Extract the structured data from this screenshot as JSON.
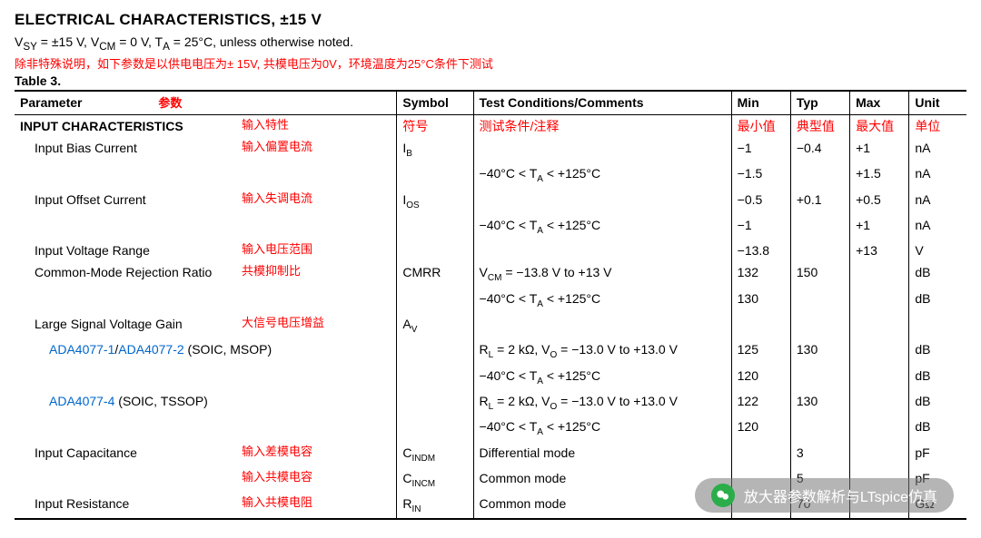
{
  "doc": {
    "title": "ELECTRICAL CHARACTERISTICS, ±15 V",
    "conditions_html": "V<sub>SY</sub> = ±15 V, V<sub>CM</sub> = 0 V, T<sub>A</sub> = 25°C, unless otherwise noted.",
    "red_note": "除非特殊说明，如下参数是以供电电压为± 15V, 共模电压为0V，环境温度为25°C条件下测试",
    "table_label": "Table 3."
  },
  "headers": {
    "parameter": "Parameter",
    "parameter_anno": "参数",
    "symbol": "Symbol",
    "cond": "Test Conditions/Comments",
    "min": "Min",
    "typ": "Typ",
    "max": "Max",
    "unit": "Unit"
  },
  "header_annos": {
    "symbol": "符号",
    "cond": "测试条件/注释",
    "min": "最小值",
    "typ": "典型值",
    "max": "最大值",
    "unit": "单位"
  },
  "rows": [
    {
      "param_html": "<span class='bold'>INPUT CHARACTERISTICS</span>",
      "anno": "输入特性",
      "symbol_red": "符号",
      "cond_red": "测试条件/注释",
      "min_red": "最小值",
      "typ_red": "典型值",
      "max_red": "最大值",
      "unit_red": "单位"
    },
    {
      "param_html": "<span class='indent1'>Input Bias Current</span>",
      "anno": "输入偏置电流",
      "symbol_html": "I<span class='sub'>B</span>",
      "cond_html": "",
      "min": "−1",
      "typ": "−0.4",
      "max": "+1",
      "unit": "nA"
    },
    {
      "param_html": "",
      "anno": "",
      "symbol_html": "",
      "cond_html": "−40°C < T<span class='sub'>A</span> < +125°C",
      "min": "−1.5",
      "typ": "",
      "max": "+1.5",
      "unit": "nA"
    },
    {
      "param_html": "<span class='indent1'>Input Offset Current</span>",
      "anno": "输入失调电流",
      "symbol_html": "I<span class='sub'>OS</span>",
      "cond_html": "",
      "min": "−0.5",
      "typ": "+0.1",
      "max": "+0.5",
      "unit": "nA"
    },
    {
      "param_html": "",
      "anno": "",
      "symbol_html": "",
      "cond_html": "−40°C < T<span class='sub'>A</span> < +125°C",
      "min": "−1",
      "typ": "",
      "max": "+1",
      "unit": "nA"
    },
    {
      "param_html": "<span class='indent1'>Input Voltage Range</span>",
      "anno": "输入电压范围",
      "symbol_html": "",
      "cond_html": "",
      "min": "−13.8",
      "typ": "",
      "max": "+13",
      "unit": "V"
    },
    {
      "param_html": "<span class='indent1'>Common-Mode Rejection Ratio</span>",
      "anno": "共模抑制比",
      "symbol_html": "CMRR",
      "cond_html": "V<span class='sub'>CM</span> = −13.8 V to +13 V",
      "min": "132",
      "typ": "150",
      "max": "",
      "unit": "dB"
    },
    {
      "param_html": "",
      "anno": "",
      "symbol_html": "",
      "cond_html": "−40°C < T<span class='sub'>A</span> < +125°C",
      "min": "130",
      "typ": "",
      "max": "",
      "unit": "dB"
    },
    {
      "param_html": "<span class='indent1'>Large Signal Voltage Gain</span>",
      "anno": "大信号电压增益",
      "symbol_html": "A<span class='sub'>V</span>",
      "cond_html": "",
      "min": "",
      "typ": "",
      "max": "",
      "unit": ""
    },
    {
      "param_html": "<span class='indent2'><span class='blue'>ADA4077-1</span>/<span class='blue'>ADA4077-2</span> (SOIC, MSOP)</span>",
      "anno": "",
      "symbol_html": "",
      "cond_html": "R<span class='sub'>L</span> = 2 kΩ, V<span class='sub'>O</span> = −13.0 V to +13.0 V",
      "min": "125",
      "typ": "130",
      "max": "",
      "unit": "dB"
    },
    {
      "param_html": "",
      "anno": "",
      "symbol_html": "",
      "cond_html": "−40°C < T<span class='sub'>A</span> < +125°C",
      "min": "120",
      "typ": "",
      "max": "",
      "unit": "dB"
    },
    {
      "param_html": "<span class='indent2'><span class='blue'>ADA4077-4</span> (SOIC, TSSOP)</span>",
      "anno": "",
      "symbol_html": "",
      "cond_html": "R<span class='sub'>L</span> = 2 kΩ, V<span class='sub'>O</span> = −13.0 V to +13.0 V",
      "min": "122",
      "typ": "130",
      "max": "",
      "unit": "dB"
    },
    {
      "param_html": "",
      "anno": "",
      "symbol_html": "",
      "cond_html": "−40°C < T<span class='sub'>A</span> < +125°C",
      "min": "120",
      "typ": "",
      "max": "",
      "unit": "dB"
    },
    {
      "param_html": "<span class='indent1'>Input Capacitance</span>",
      "anno": "输入差模电容",
      "symbol_html": "C<span class='sub'>INDM</span>",
      "cond_html": "Differential mode",
      "min": "",
      "typ": "3",
      "max": "",
      "unit": "pF"
    },
    {
      "param_html": "",
      "anno": "输入共模电容",
      "symbol_html": "C<span class='sub'>INCM</span>",
      "cond_html": "Common mode",
      "min": "",
      "typ": "5",
      "max": "",
      "unit": "pF"
    },
    {
      "param_html": "<span class='indent1'>Input Resistance</span>",
      "anno": "输入共模电阻",
      "symbol_html": "R<span class='sub'>IN</span>",
      "cond_html": "Common mode",
      "min": "",
      "typ": "70",
      "max": "",
      "unit": "GΩ"
    }
  ],
  "watermark": {
    "text": "放大器参数解析与LTspice仿真"
  },
  "style": {
    "red": "#ff0000",
    "blue": "#0066cc",
    "border": "#000000",
    "background": "#ffffff",
    "font_base_pt": 14,
    "title_pt": 17
  }
}
